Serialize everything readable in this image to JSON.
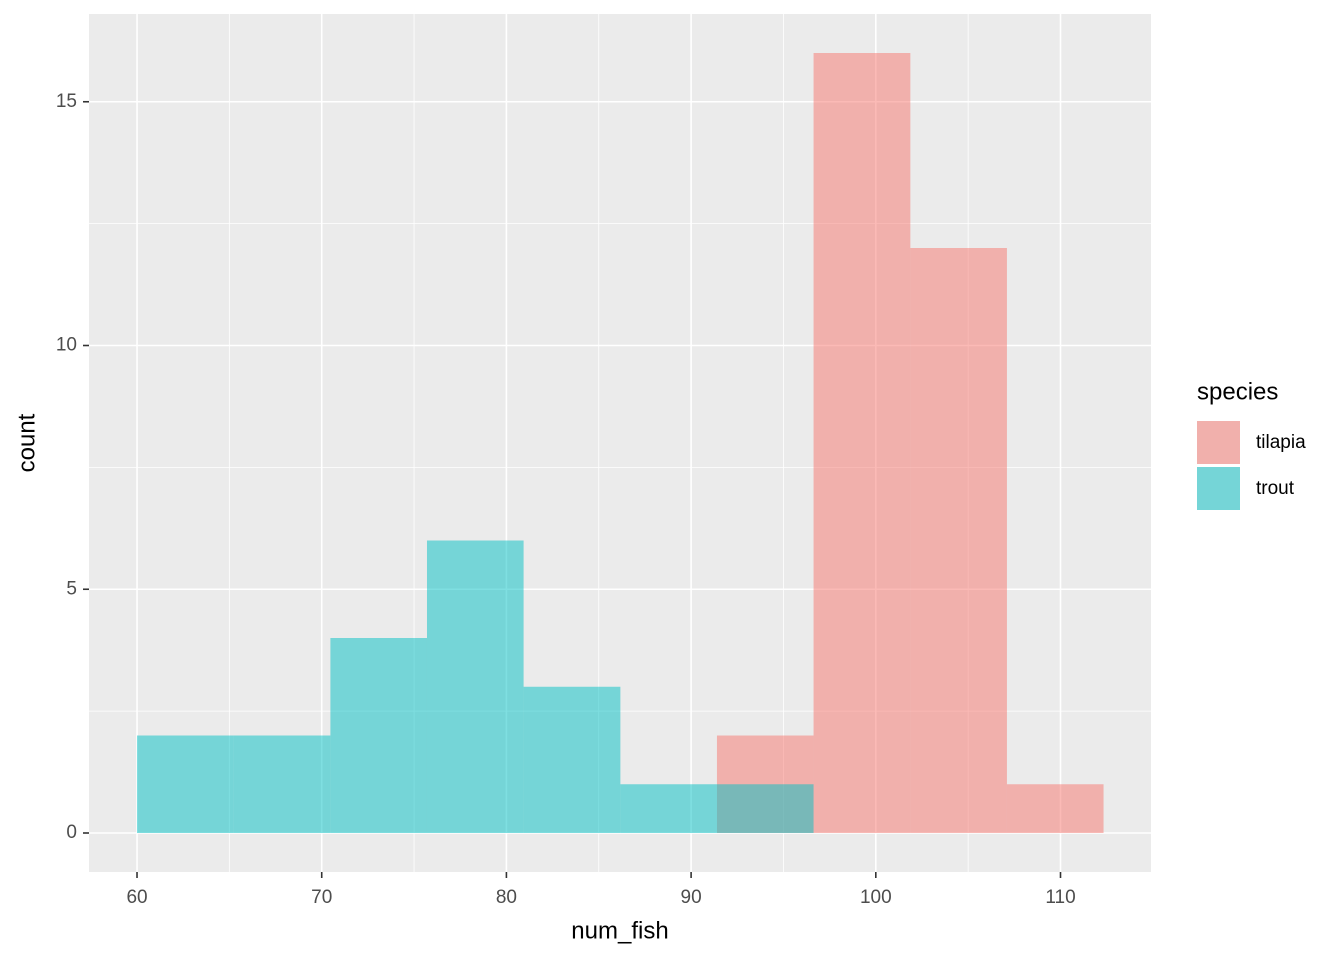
{
  "chart_data": {
    "type": "histogram",
    "x_label": "num_fish",
    "y_label": "count",
    "bins": [
      60,
      65.23,
      70.47,
      75.7,
      80.93,
      86.17,
      91.4,
      96.63,
      101.87,
      107.1,
      112.33
    ],
    "series": [
      {
        "name": "tilapia",
        "color": "#F8766D",
        "values": [
          0,
          0,
          0,
          0,
          0,
          0,
          2,
          16,
          12,
          1
        ]
      },
      {
        "name": "trout",
        "color": "#00BFC4",
        "values": [
          2,
          2,
          4,
          6,
          3,
          1,
          1,
          0,
          0,
          0
        ]
      }
    ],
    "opacity": 0.5,
    "xlim": [
      57.4,
      114.9
    ],
    "ylim": [
      -0.8,
      16.8
    ],
    "xticks": [
      60,
      70,
      80,
      90,
      100,
      110
    ],
    "yticks": [
      0,
      5,
      10,
      15
    ],
    "grid": true,
    "legend_title": "species",
    "legend_position": "right"
  }
}
